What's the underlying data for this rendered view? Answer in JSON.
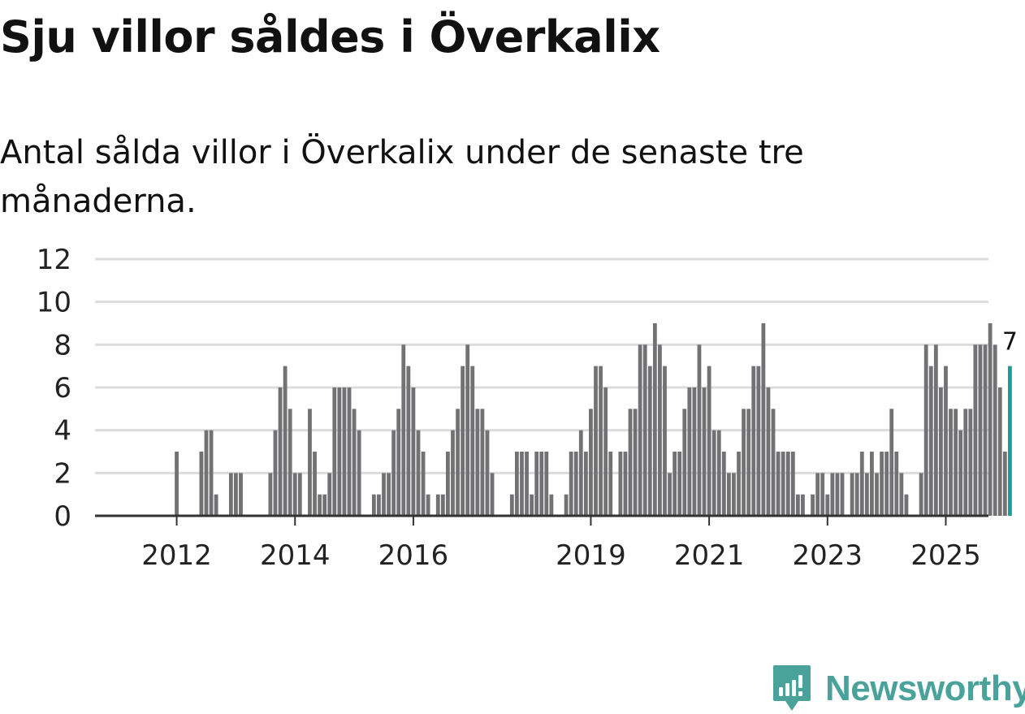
{
  "title": "Sju villor såldes i Överkalix",
  "subtitle": "Antal sålda villor i Överkalix under de senaste tre månaderna.",
  "brand": {
    "name": "Newsworthy",
    "color": "#4aa39a"
  },
  "colors": {
    "bar": "#727174",
    "highlight": "#1a9e96",
    "grid": "#dcdcdc",
    "axis": "#333333"
  },
  "chart_data": {
    "type": "bar",
    "title": "Sju villor såldes i Överkalix",
    "subtitle": "Antal sålda villor i Överkalix under de senaste tre månaderna.",
    "xlabel": "",
    "ylabel": "",
    "ylim": [
      0,
      12
    ],
    "yticks": [
      0,
      2,
      4,
      6,
      8,
      10,
      12
    ],
    "grid": true,
    "x_tick_labels": [
      "2012",
      "2014",
      "2016",
      "2019",
      "2021",
      "2023",
      "2025"
    ],
    "x_tick_months": [
      8,
      32,
      56,
      92,
      116,
      140,
      164
    ],
    "period": "monthly, first bar ≈ 2011-05",
    "values": [
      null,
      null,
      null,
      null,
      null,
      null,
      null,
      null,
      3,
      null,
      null,
      null,
      null,
      3,
      4,
      4,
      1,
      null,
      null,
      2,
      2,
      2,
      null,
      null,
      null,
      null,
      null,
      2,
      4,
      6,
      7,
      5,
      2,
      2,
      null,
      5,
      3,
      1,
      1,
      2,
      6,
      6,
      6,
      6,
      5,
      4,
      null,
      null,
      1,
      1,
      2,
      2,
      4,
      5,
      8,
      7,
      6,
      4,
      3,
      1,
      null,
      1,
      1,
      3,
      4,
      5,
      7,
      8,
      7,
      5,
      5,
      4,
      2,
      null,
      null,
      null,
      1,
      3,
      3,
      3,
      1,
      3,
      3,
      3,
      1,
      null,
      null,
      1,
      3,
      3,
      4,
      3,
      5,
      7,
      7,
      6,
      3,
      null,
      3,
      3,
      5,
      5,
      8,
      8,
      7,
      9,
      8,
      7,
      2,
      3,
      3,
      5,
      6,
      6,
      8,
      6,
      7,
      4,
      4,
      3,
      2,
      2,
      3,
      5,
      5,
      7,
      7,
      9,
      6,
      5,
      3,
      3,
      3,
      3,
      1,
      1,
      null,
      1,
      2,
      2,
      1,
      2,
      2,
      2,
      null,
      2,
      2,
      3,
      2,
      3,
      2,
      3,
      3,
      5,
      3,
      2,
      1,
      null,
      null,
      2,
      8,
      7,
      8,
      6,
      7,
      5,
      5,
      4,
      5,
      5,
      8,
      8,
      8,
      9,
      8,
      6,
      3,
      7
    ],
    "highlight": {
      "label": "7",
      "value": 7,
      "note": "latest month"
    }
  }
}
